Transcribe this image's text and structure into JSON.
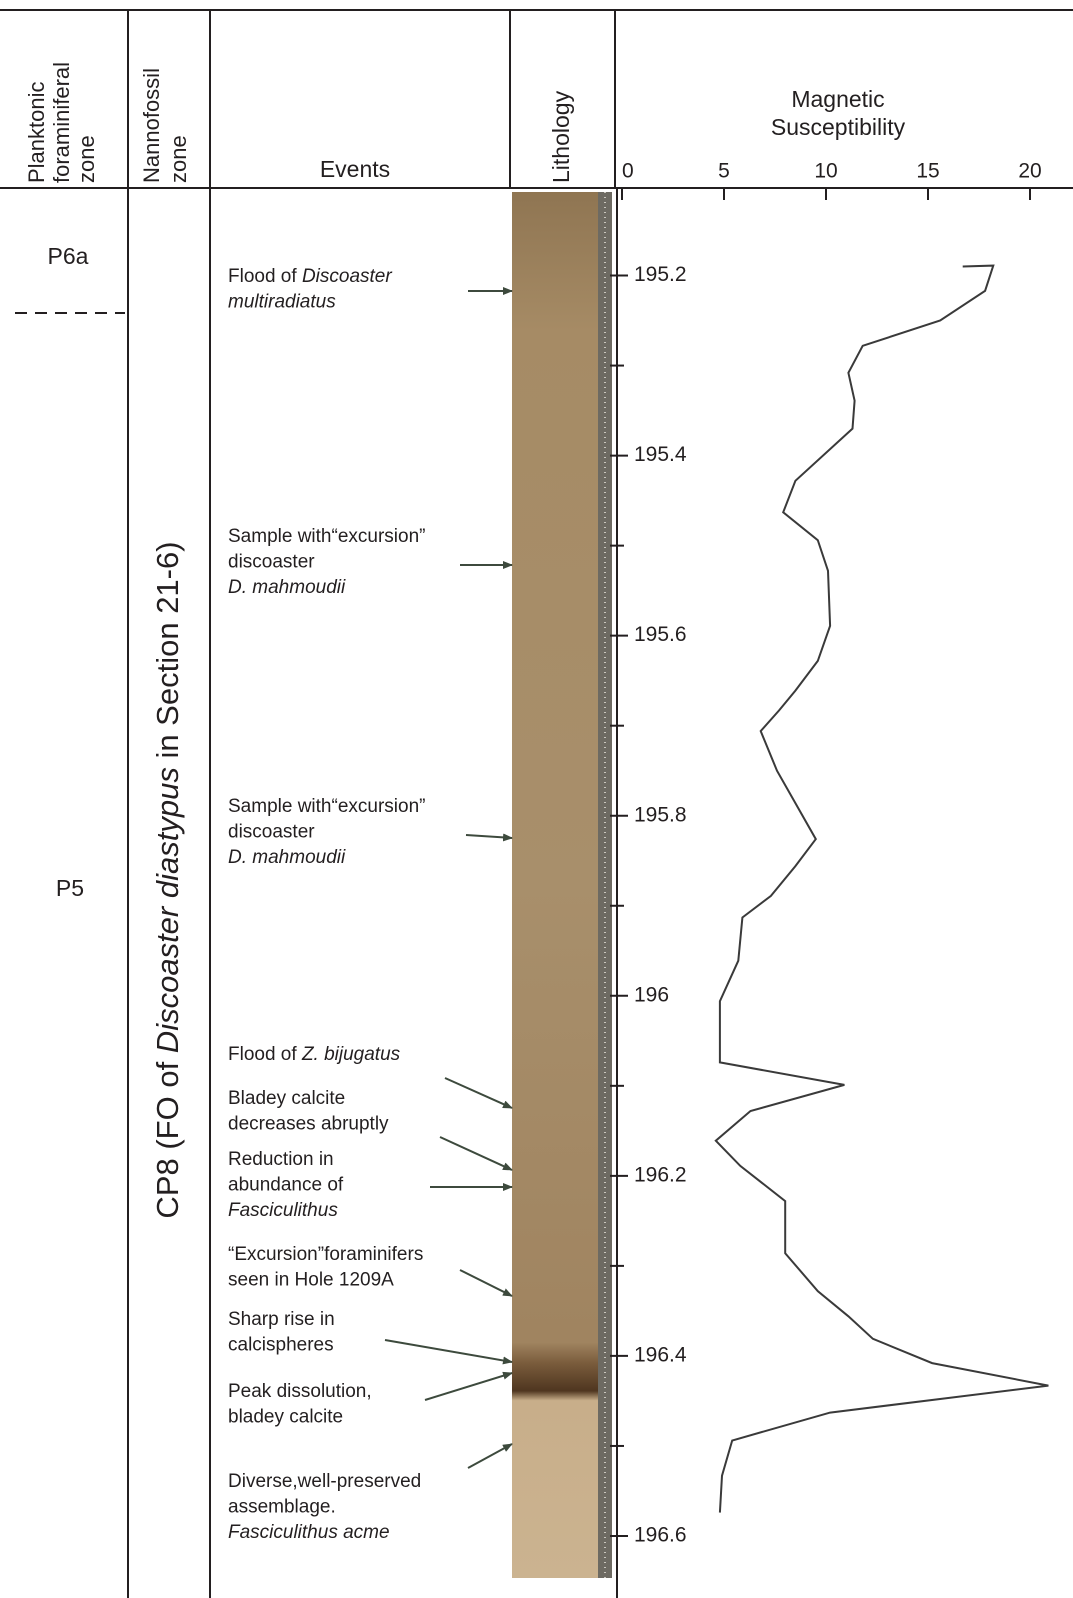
{
  "header": {
    "planktonic": [
      "Planktonic",
      "foraminiferal",
      "zone"
    ],
    "nannofossil": [
      "Nannofossil",
      "zone"
    ],
    "events": "Events",
    "lithology": "Lithology"
  },
  "zones": {
    "planktonic": [
      "P6a",
      "P5"
    ],
    "nannofossil": [
      {
        "text": "CP8 (FO of "
      },
      {
        "text": "Discoaster diastypus",
        "italic": true
      },
      {
        "text": " in Section 21-6)"
      }
    ]
  },
  "events": [
    {
      "lines": [
        [
          {
            "text": "Flood of "
          },
          {
            "text": "Discoaster",
            "italic": true
          }
        ],
        [
          {
            "text": "multiradiatus",
            "italic": true
          }
        ]
      ]
    },
    {
      "lines": [
        [
          {
            "text": "Sample with“excursion”"
          }
        ],
        [
          {
            "text": "discoaster"
          }
        ],
        [
          {
            "text": "D. mahmoudii",
            "italic": true
          }
        ]
      ]
    },
    {
      "lines": [
        [
          {
            "text": "Sample with“excursion”"
          }
        ],
        [
          {
            "text": "discoaster"
          }
        ],
        [
          {
            "text": "D. mahmoudii",
            "italic": true
          }
        ]
      ]
    },
    {
      "lines": [
        [
          {
            "text": "Flood of "
          },
          {
            "text": "Z. bijugatus",
            "italic": true
          }
        ]
      ]
    },
    {
      "lines": [
        [
          {
            "text": "Bladey calcite"
          }
        ],
        [
          {
            "text": "decreases abruptly"
          }
        ]
      ]
    },
    {
      "lines": [
        [
          {
            "text": "Reduction in"
          }
        ],
        [
          {
            "text": "abundance of"
          }
        ],
        [
          {
            "text": "Fasciculithus",
            "italic": true
          }
        ]
      ]
    },
    {
      "lines": [
        [
          {
            "text": "“Excursion”foraminifers"
          }
        ],
        [
          {
            "text": "seen in Hole 1209A"
          }
        ]
      ]
    },
    {
      "lines": [
        [
          {
            "text": "Sharp rise in"
          }
        ],
        [
          {
            "text": "calcispheres"
          }
        ]
      ]
    },
    {
      "lines": [
        [
          {
            "text": "Peak dissolution,"
          }
        ],
        [
          {
            "text": "bladey calcite"
          }
        ]
      ]
    },
    {
      "lines": [
        [
          {
            "text": "Diverse,well-preserved"
          }
        ],
        [
          {
            "text": "assemblage."
          }
        ],
        [
          {
            "text": "Fasciculithus acme",
            "italic": true
          }
        ]
      ]
    }
  ],
  "chart_data": {
    "type": "line",
    "title": [
      "Magnetic",
      "Susceptibility"
    ],
    "xlim": [
      0,
      21
    ],
    "xticks": [
      0,
      5,
      10,
      15,
      20
    ],
    "ylim": [
      195.105,
      196.66
    ],
    "yticks": [
      195.2,
      195.4,
      195.6,
      195.8,
      196,
      196.2,
      196.4,
      196.6
    ],
    "yminorticks": [
      195.3,
      195.5,
      195.7,
      195.9,
      196.1,
      196.3,
      196.5
    ],
    "series": [
      {
        "color": "#3a3a3a",
        "values": [
          16.7,
          18.2,
          17.8,
          15.6,
          11.8,
          11.1,
          11.4,
          11.3,
          8.5,
          7.9,
          9.6,
          10.1,
          10.2,
          9.6,
          8.5,
          7.7,
          6.8,
          7.6,
          9.5,
          8.5,
          7.3,
          5.9,
          5.7,
          4.8,
          4.8,
          10.9,
          6.3,
          4.6,
          5.8,
          8.0,
          8.0,
          9.6,
          11.1,
          12.3,
          15.2,
          20.9,
          10.2,
          5.4,
          4.9,
          4.8
        ],
        "depths": [
          195.19,
          195.189,
          195.217,
          195.25,
          195.278,
          195.308,
          195.339,
          195.37,
          195.428,
          195.463,
          195.494,
          195.528,
          195.589,
          195.628,
          195.661,
          195.683,
          195.706,
          195.75,
          195.826,
          195.856,
          195.889,
          195.913,
          195.961,
          196.006,
          196.074,
          196.099,
          196.128,
          196.161,
          196.189,
          196.228,
          196.286,
          196.328,
          196.356,
          196.381,
          196.408,
          196.433,
          196.463,
          196.494,
          196.533,
          196.574
        ]
      }
    ]
  }
}
